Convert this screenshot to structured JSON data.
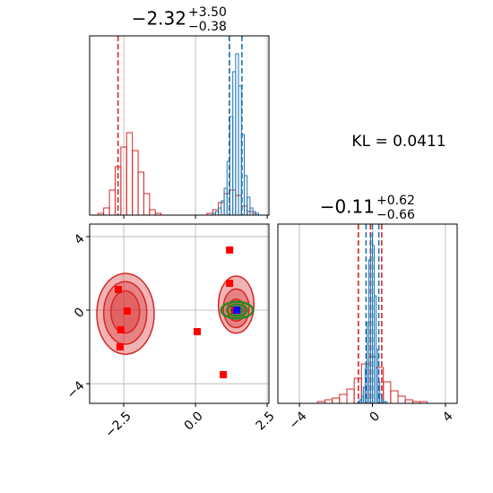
{
  "chart_data": [
    {
      "type": "histogram",
      "title": "−2.32",
      "title_upper": "+3.50",
      "title_lower": "−0.38",
      "ylim": [
        0,
        100
      ],
      "grid": true,
      "series": [
        {
          "color": "#d62728",
          "bins": [
            -3.4,
            -3.2,
            -3.0,
            -2.8,
            -2.6,
            -2.4,
            -2.2,
            -2.0,
            -1.8,
            -1.6,
            -1.4,
            -1.2,
            -1.0,
            -0.8,
            -0.6,
            -0.4,
            -0.2,
            0.0,
            0.2,
            0.4,
            0.6,
            0.8,
            1.0,
            1.2,
            1.4,
            1.6,
            1.8,
            2.0,
            2.2
          ],
          "values": [
            1,
            4,
            14,
            27,
            38,
            46,
            36,
            24,
            12,
            3,
            1,
            0,
            0,
            0,
            0,
            0,
            0,
            0,
            0,
            1,
            3,
            7,
            12,
            14,
            11,
            5,
            2,
            1
          ],
          "quantiles": [
            -2.7,
            1.18
          ]
        },
        {
          "color": "#1f77b4",
          "bins": [
            0.6,
            0.7,
            0.8,
            0.9,
            1.0,
            1.1,
            1.2,
            1.3,
            1.4,
            1.5,
            1.6,
            1.7,
            1.8,
            1.9,
            2.0,
            2.1,
            2.2
          ],
          "values": [
            1,
            2,
            4,
            8,
            15,
            30,
            55,
            80,
            90,
            72,
            45,
            22,
            10,
            4,
            2,
            1
          ],
          "quantiles": [
            1.18,
            1.62
          ]
        }
      ]
    },
    {
      "type": "text",
      "text": "KL = 0.0411"
    },
    {
      "type": "contour",
      "xlim": [
        -3.69,
        2.56
      ],
      "ylim": [
        -5.07,
        4.68
      ],
      "xticks": [
        {
          "value": -2.5,
          "label": "−2.5"
        },
        {
          "value": 0,
          "label": "0.0"
        },
        2.5
      ],
      "yticks": [
        4,
        0,
        {
          "value": -4,
          "label": "−4"
        }
      ],
      "grid": true,
      "contours": [
        {
          "color": "#d62728",
          "x": [
            -2.44,
            -2.45,
            -2.45,
            1.42,
            1.42,
            1.42
          ],
          "y": [
            -0.2,
            -0.15,
            -0.1,
            0.3,
            0.1,
            0.0
          ],
          "rx": [
            1.0,
            0.75,
            0.5,
            0.62,
            0.45,
            0.3
          ],
          "ry": [
            2.2,
            1.7,
            1.15,
            1.55,
            1.05,
            0.6
          ]
        },
        {
          "color": "#228b22",
          "x": [
            1.45,
            1.45,
            1.45
          ],
          "y": [
            0,
            0,
            0
          ],
          "rx": [
            0.55,
            0.35,
            0.2
          ],
          "ry": [
            0.45,
            0.3,
            0.15
          ]
        }
      ],
      "series": [
        {
          "color": "#ff0000",
          "x": [
            1.19,
            1.19,
            -2.69,
            -2.6,
            -2.63,
            0.06,
            0.97,
            -2.38,
            1.37
          ],
          "values": [
            3.27,
            1.46,
            1.12,
            -1.07,
            -2.0,
            -1.17,
            -3.51,
            -0.05,
            0
          ]
        },
        {
          "color": "#0000ff",
          "x": [
            1.44
          ],
          "values": [
            0
          ]
        }
      ]
    },
    {
      "type": "histogram",
      "title": "−0.11",
      "title_upper": "+0.62",
      "title_lower": "−0.66",
      "xlim": [
        -5.18,
        4.64
      ],
      "xticks": [
        {
          "value": -4,
          "label": "−4"
        },
        0,
        4
      ],
      "ylim": [
        0,
        100
      ],
      "grid": true,
      "series": [
        {
          "color": "#d62728",
          "bins": [
            -3.0,
            -2.6,
            -2.2,
            -1.8,
            -1.4,
            -1.0,
            -0.6,
            -0.2,
            0.2,
            0.6,
            1.0,
            1.4,
            1.8,
            2.2,
            2.6,
            3.0
          ],
          "values": [
            1,
            2,
            3,
            5,
            8,
            14,
            22,
            26,
            20,
            12,
            7,
            4,
            2,
            1,
            1
          ],
          "quantiles": [
            -0.77,
            -0.11,
            0.51
          ]
        },
        {
          "color": "#1f77b4",
          "bins": [
            -0.8,
            -0.7,
            -0.6,
            -0.5,
            -0.4,
            -0.3,
            -0.2,
            -0.1,
            0.0,
            0.1,
            0.2,
            0.3,
            0.4,
            0.5,
            0.6,
            0.7,
            0.8
          ],
          "values": [
            1,
            2,
            4,
            9,
            20,
            45,
            80,
            94,
            88,
            60,
            30,
            12,
            5,
            2,
            1,
            1
          ],
          "quantiles": [
            -0.35,
            0.0,
            0.35
          ]
        }
      ]
    }
  ]
}
